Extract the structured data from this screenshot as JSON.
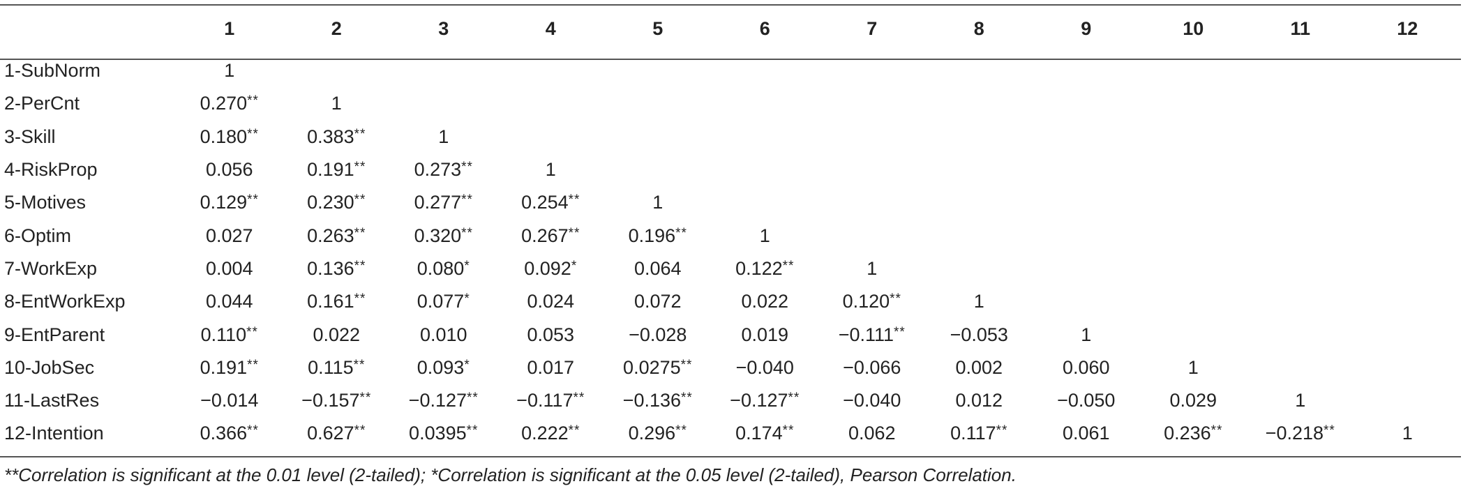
{
  "table": {
    "column_headers": [
      "",
      "1",
      "2",
      "3",
      "4",
      "5",
      "6",
      "7",
      "8",
      "9",
      "10",
      "11",
      "12"
    ],
    "rows": [
      {
        "label": "1-SubNorm",
        "cells": [
          {
            "v": "1",
            "s": ""
          }
        ]
      },
      {
        "label": "2-PerCnt",
        "cells": [
          {
            "v": "0.270",
            "s": "**"
          },
          {
            "v": "1",
            "s": ""
          }
        ]
      },
      {
        "label": "3-Skill",
        "cells": [
          {
            "v": "0.180",
            "s": "**"
          },
          {
            "v": "0.383",
            "s": "**"
          },
          {
            "v": "1",
            "s": ""
          }
        ]
      },
      {
        "label": "4-RiskProp",
        "cells": [
          {
            "v": "0.056",
            "s": ""
          },
          {
            "v": "0.191",
            "s": "**"
          },
          {
            "v": "0.273",
            "s": "**"
          },
          {
            "v": "1",
            "s": ""
          }
        ]
      },
      {
        "label": "5-Motives",
        "cells": [
          {
            "v": "0.129",
            "s": "**"
          },
          {
            "v": "0.230",
            "s": "**"
          },
          {
            "v": "0.277",
            "s": "**"
          },
          {
            "v": "0.254",
            "s": "**"
          },
          {
            "v": "1",
            "s": ""
          }
        ]
      },
      {
        "label": "6-Optim",
        "cells": [
          {
            "v": "0.027",
            "s": ""
          },
          {
            "v": "0.263",
            "s": "**"
          },
          {
            "v": "0.320",
            "s": "**"
          },
          {
            "v": "0.267",
            "s": "**"
          },
          {
            "v": "0.196",
            "s": "**"
          },
          {
            "v": "1",
            "s": ""
          }
        ]
      },
      {
        "label": "7-WorkExp",
        "cells": [
          {
            "v": "0.004",
            "s": ""
          },
          {
            "v": "0.136",
            "s": "**"
          },
          {
            "v": "0.080",
            "s": "*"
          },
          {
            "v": "0.092",
            "s": "*"
          },
          {
            "v": "0.064",
            "s": ""
          },
          {
            "v": "0.122",
            "s": "**"
          },
          {
            "v": "1",
            "s": ""
          }
        ]
      },
      {
        "label": "8-EntWorkExp",
        "cells": [
          {
            "v": "0.044",
            "s": ""
          },
          {
            "v": "0.161",
            "s": "**"
          },
          {
            "v": "0.077",
            "s": "*"
          },
          {
            "v": "0.024",
            "s": ""
          },
          {
            "v": "0.072",
            "s": ""
          },
          {
            "v": "0.022",
            "s": ""
          },
          {
            "v": "0.120",
            "s": "**"
          },
          {
            "v": "1",
            "s": ""
          }
        ]
      },
      {
        "label": "9-EntParent",
        "cells": [
          {
            "v": "0.110",
            "s": "**"
          },
          {
            "v": "0.022",
            "s": ""
          },
          {
            "v": "0.010",
            "s": ""
          },
          {
            "v": "0.053",
            "s": ""
          },
          {
            "v": "−0.028",
            "s": ""
          },
          {
            "v": "0.019",
            "s": ""
          },
          {
            "v": "−0.111",
            "s": "**"
          },
          {
            "v": "−0.053",
            "s": ""
          },
          {
            "v": "1",
            "s": ""
          }
        ]
      },
      {
        "label": "10-JobSec",
        "cells": [
          {
            "v": "0.191",
            "s": "**"
          },
          {
            "v": "0.115",
            "s": "**"
          },
          {
            "v": "0.093",
            "s": "*"
          },
          {
            "v": "0.017",
            "s": ""
          },
          {
            "v": "0.0275",
            "s": "**"
          },
          {
            "v": "−0.040",
            "s": ""
          },
          {
            "v": "−0.066",
            "s": ""
          },
          {
            "v": "0.002",
            "s": ""
          },
          {
            "v": "0.060",
            "s": ""
          },
          {
            "v": "1",
            "s": ""
          }
        ]
      },
      {
        "label": "11-LastRes",
        "cells": [
          {
            "v": "−0.014",
            "s": ""
          },
          {
            "v": "−0.157",
            "s": "**"
          },
          {
            "v": "−0.127",
            "s": "**"
          },
          {
            "v": "−0.117",
            "s": "**"
          },
          {
            "v": "−0.136",
            "s": "**"
          },
          {
            "v": "−0.127",
            "s": "**"
          },
          {
            "v": "−0.040",
            "s": ""
          },
          {
            "v": "0.012",
            "s": ""
          },
          {
            "v": "−0.050",
            "s": ""
          },
          {
            "v": "0.029",
            "s": ""
          },
          {
            "v": "1",
            "s": ""
          }
        ]
      },
      {
        "label": "12-Intention",
        "cells": [
          {
            "v": "0.366",
            "s": "**"
          },
          {
            "v": "0.627",
            "s": "**"
          },
          {
            "v": "0.0395",
            "s": "**"
          },
          {
            "v": "0.222",
            "s": "**"
          },
          {
            "v": "0.296",
            "s": "**"
          },
          {
            "v": "0.174",
            "s": "**"
          },
          {
            "v": "0.062",
            "s": ""
          },
          {
            "v": "0.117",
            "s": "**"
          },
          {
            "v": "0.061",
            "s": ""
          },
          {
            "v": "0.236",
            "s": "**"
          },
          {
            "v": "−0.218",
            "s": "**"
          },
          {
            "v": "1",
            "s": ""
          }
        ]
      }
    ]
  },
  "footnote": "**Correlation is significant at the 0.01 level (2-tailed); *Correlation is significant at the 0.05 level (2-tailed), Pearson Correlation."
}
